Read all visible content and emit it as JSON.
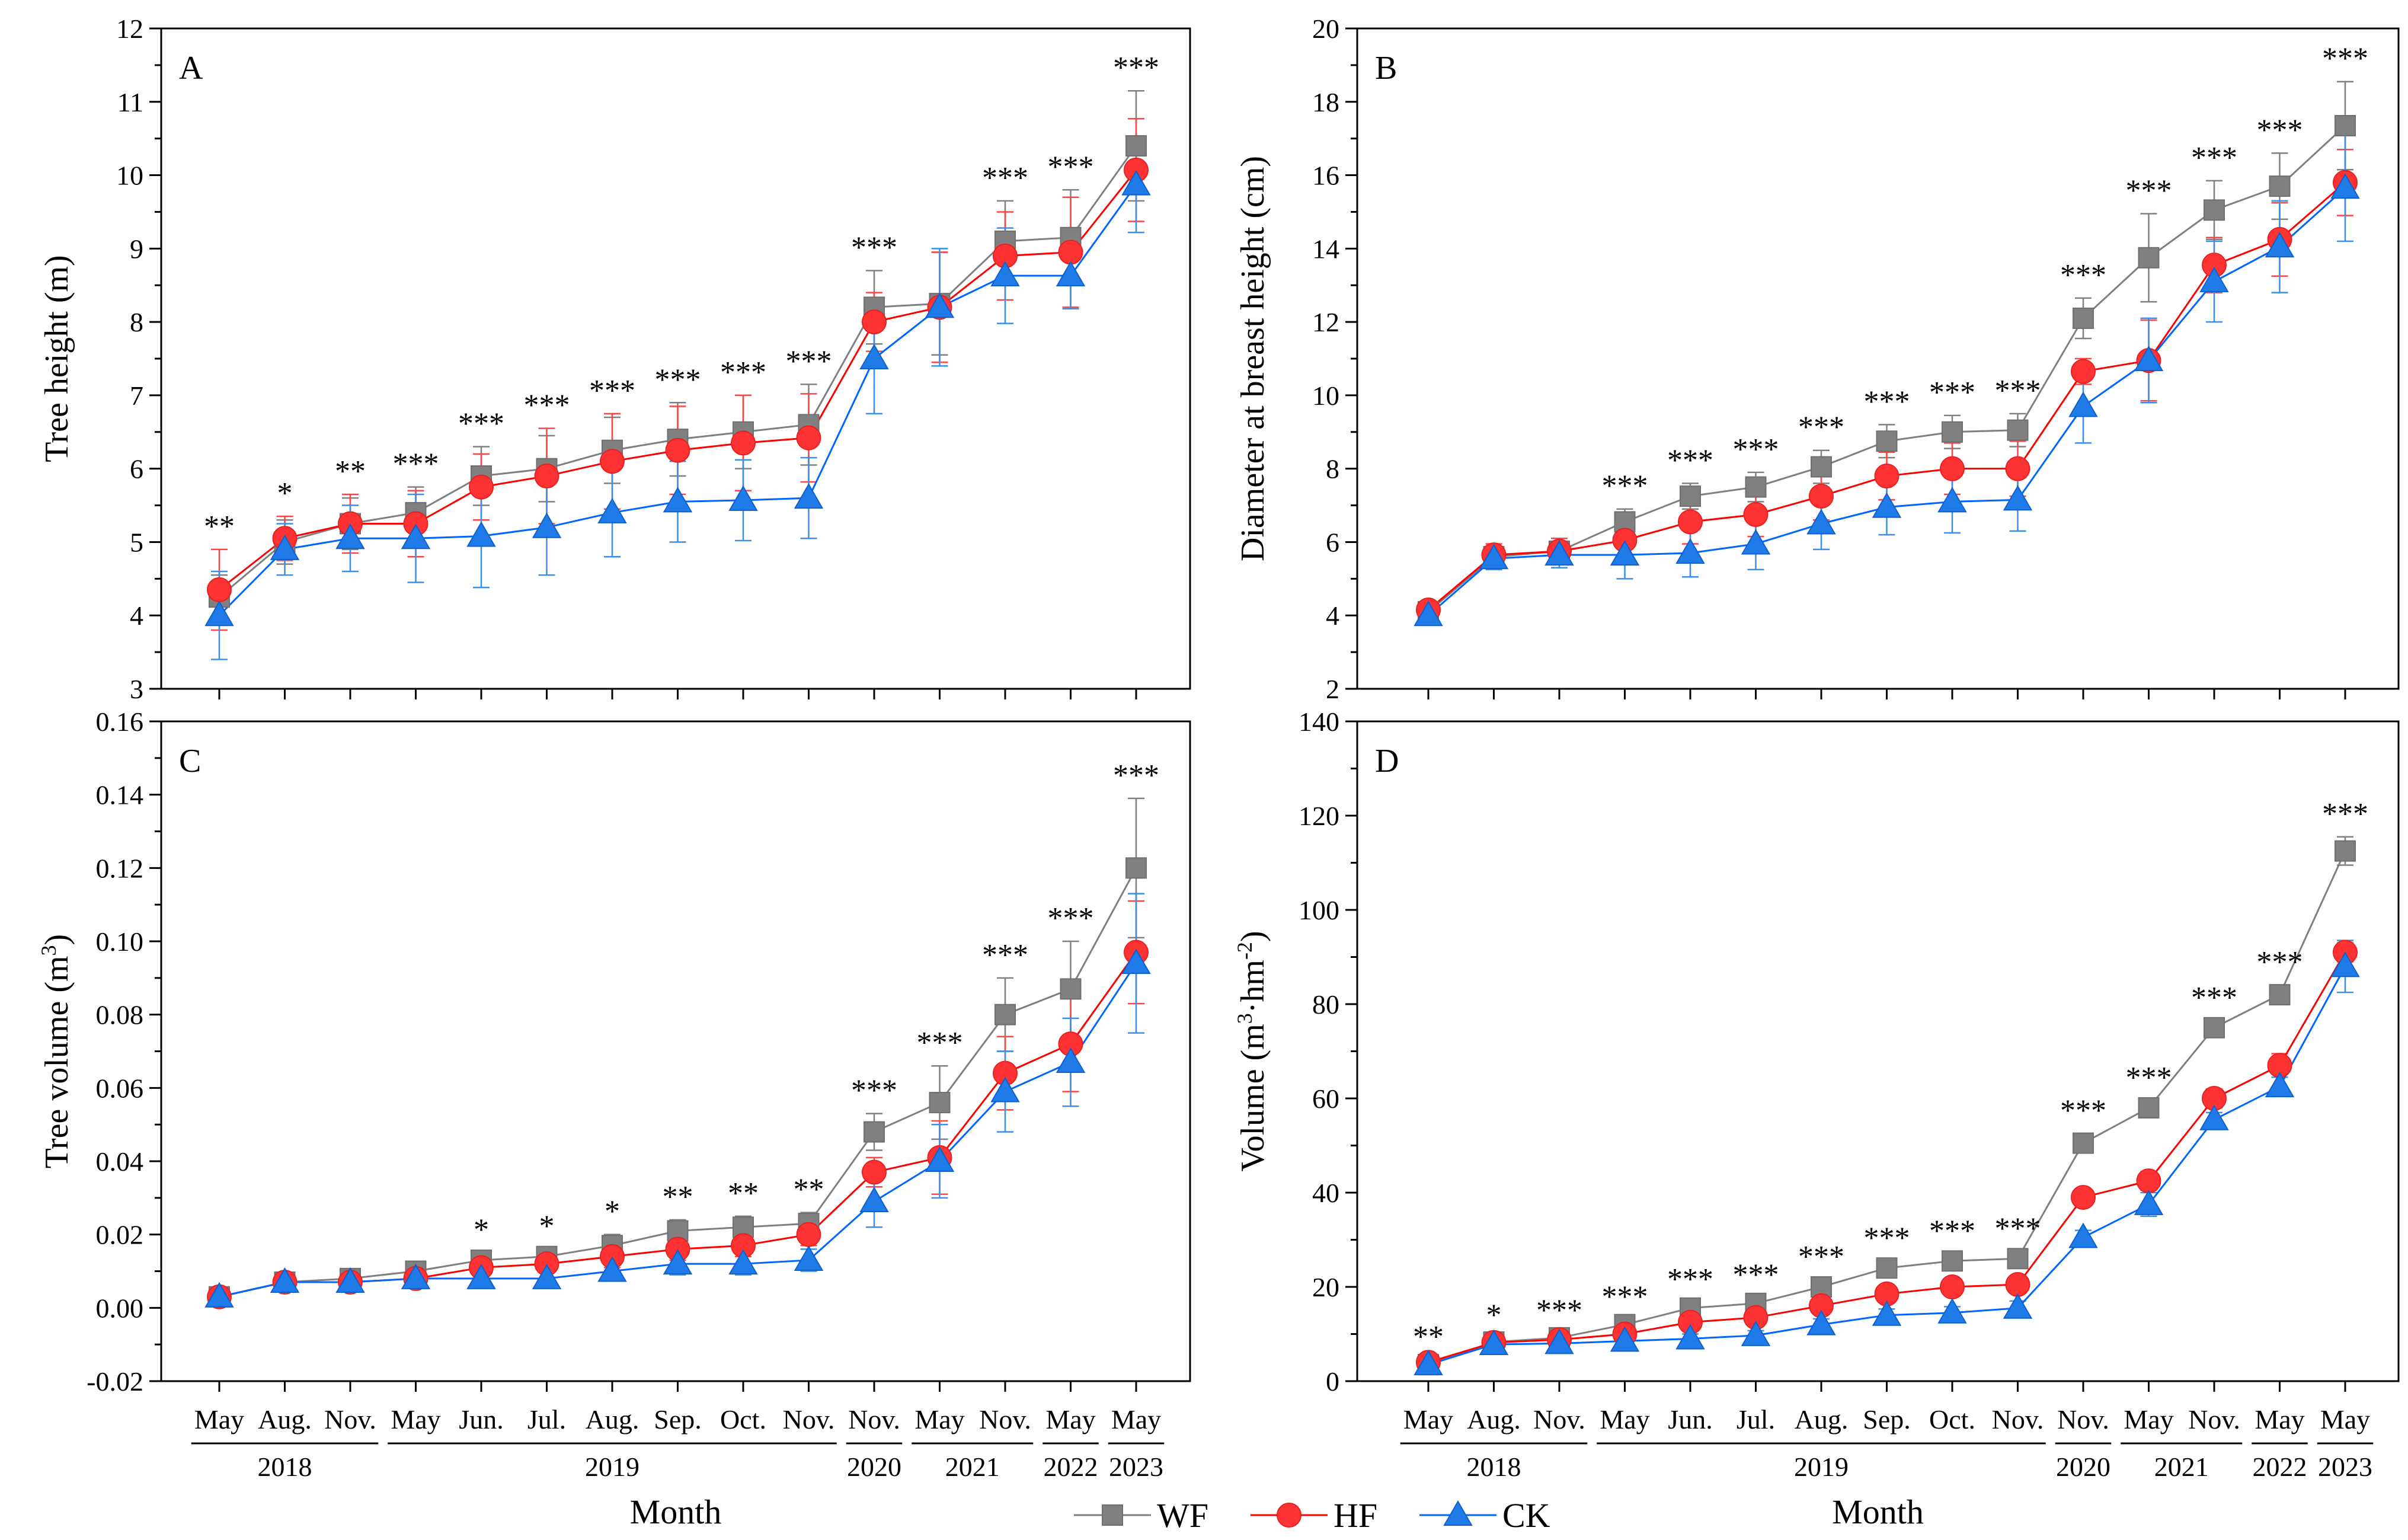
{
  "legend": {
    "entries": [
      {
        "name": "WF",
        "color": "#808080",
        "marker": "square"
      },
      {
        "name": "HF",
        "color": "#ff3333",
        "marker": "circle"
      },
      {
        "name": "CK",
        "color": "#1f7be8",
        "marker": "triangle"
      }
    ]
  },
  "colors": {
    "WF": "#808080",
    "HF": "#ff3333",
    "CK": "#1f7be8",
    "WF_line": "#7f7f7f",
    "HF_line": "#ff0000",
    "CK_line": "#0066ff"
  },
  "chart_data": [
    {
      "type": "line",
      "panel": "A",
      "ylabel": "Tree height (m)",
      "xlabel": "",
      "ylim": [
        3,
        12
      ],
      "yticks": [
        "3",
        "4",
        "5",
        "6",
        "7",
        "8",
        "9",
        "10",
        "11",
        "12"
      ],
      "categories": [
        "May",
        "Aug.",
        "Nov.",
        "May",
        "Jun.",
        "Jul.",
        "Aug.",
        "Sep.",
        "Oct.",
        "Nov.",
        "Nov.",
        "May",
        "Nov.",
        "May",
        "May"
      ],
      "years": [
        {
          "label": "2018",
          "from": 0,
          "to": 2
        },
        {
          "label": "2019",
          "from": 3,
          "to": 9
        },
        {
          "label": "2020",
          "from": 10,
          "to": 10
        },
        {
          "label": "2021",
          "from": 11,
          "to": 12
        },
        {
          "label": "2022",
          "from": 13,
          "to": 13
        },
        {
          "label": "2023",
          "from": 14,
          "to": 14
        }
      ],
      "series": [
        {
          "name": "WF",
          "values": [
            4.25,
            5.0,
            5.25,
            5.4,
            5.9,
            6.0,
            6.25,
            6.4,
            6.5,
            6.6,
            8.2,
            8.25,
            9.1,
            9.15,
            10.4
          ],
          "errors": [
            0.3,
            0.3,
            0.35,
            0.35,
            0.4,
            0.45,
            0.45,
            0.5,
            0.5,
            0.55,
            0.5,
            0.7,
            0.55,
            0.65,
            0.75
          ]
        },
        {
          "name": "HF",
          "values": [
            4.35,
            5.05,
            5.25,
            5.25,
            5.75,
            5.9,
            6.1,
            6.25,
            6.35,
            6.42,
            8.0,
            8.2,
            8.9,
            8.95,
            10.07
          ],
          "errors": [
            0.55,
            0.3,
            0.4,
            0.45,
            0.45,
            0.65,
            0.65,
            0.6,
            0.65,
            0.6,
            0.4,
            0.75,
            0.6,
            0.75,
            0.7
          ]
        },
        {
          "name": "CK",
          "values": [
            4.0,
            4.9,
            5.05,
            5.05,
            5.08,
            5.2,
            5.4,
            5.55,
            5.57,
            5.6,
            7.5,
            8.2,
            8.63,
            8.63,
            9.87
          ],
          "errors": [
            0.6,
            0.35,
            0.45,
            0.6,
            0.7,
            0.65,
            0.6,
            0.55,
            0.55,
            0.55,
            0.75,
            0.8,
            0.65,
            0.45,
            0.65
          ]
        }
      ],
      "significance": [
        "**",
        "*",
        "**",
        "***",
        "***",
        "***",
        "***",
        "***",
        "***",
        "***",
        "***",
        "",
        "***",
        "***",
        "***"
      ],
      "x_title": "",
      "tick_label_rows": false
    },
    {
      "type": "line",
      "panel": "B",
      "ylabel": "Diameter at breast height (cm)",
      "xlabel": "",
      "ylim": [
        2,
        20
      ],
      "yticks": [
        "2",
        "4",
        "6",
        "8",
        "10",
        "12",
        "14",
        "16",
        "18",
        "20"
      ],
      "categories": [
        "May",
        "Aug.",
        "Nov.",
        "May",
        "Jun.",
        "Jul.",
        "Aug.",
        "Sep.",
        "Oct.",
        "Nov.",
        "Nov.",
        "May",
        "Nov.",
        "May",
        "May"
      ],
      "years": [
        {
          "label": "2018",
          "from": 0,
          "to": 2
        },
        {
          "label": "2019",
          "from": 3,
          "to": 9
        },
        {
          "label": "2020",
          "from": 10,
          "to": 10
        },
        {
          "label": "2021",
          "from": 11,
          "to": 12
        },
        {
          "label": "2022",
          "from": 13,
          "to": 13
        },
        {
          "label": "2023",
          "from": 14,
          "to": 14
        }
      ],
      "series": [
        {
          "name": "WF",
          "values": [
            4.1,
            5.6,
            5.75,
            6.55,
            7.25,
            7.5,
            8.05,
            8.75,
            9.0,
            9.05,
            12.1,
            13.75,
            15.05,
            15.7,
            17.35
          ],
          "errors": [
            0.15,
            0.25,
            0.35,
            0.35,
            0.35,
            0.4,
            0.45,
            0.45,
            0.45,
            0.45,
            0.55,
            1.2,
            0.8,
            0.9,
            1.2
          ]
        },
        {
          "name": "HF",
          "values": [
            4.15,
            5.65,
            5.75,
            6.05,
            6.55,
            6.75,
            7.25,
            7.8,
            8.0,
            8.0,
            10.65,
            10.95,
            13.55,
            14.25,
            15.8
          ],
          "errors": [
            0.15,
            0.3,
            0.35,
            0.5,
            0.6,
            0.6,
            0.65,
            0.65,
            0.7,
            0.75,
            0.35,
            1.1,
            0.75,
            1.0,
            0.9
          ]
        },
        {
          "name": "CK",
          "values": [
            4.0,
            5.55,
            5.65,
            5.65,
            5.7,
            5.95,
            6.5,
            6.95,
            7.1,
            7.15,
            9.7,
            10.95,
            13.1,
            14.05,
            15.65
          ],
          "errors": [
            0.2,
            0.3,
            0.35,
            0.65,
            0.65,
            0.7,
            0.7,
            0.75,
            0.85,
            0.85,
            1.0,
            1.15,
            1.1,
            1.25,
            1.45
          ]
        }
      ],
      "significance": [
        "",
        "",
        "",
        "***",
        "***",
        "***",
        "***",
        "***",
        "***",
        "***",
        "***",
        "***",
        "***",
        "***",
        "***"
      ],
      "x_title": "",
      "tick_label_rows": false
    },
    {
      "type": "line",
      "panel": "C",
      "ylabel": "Tree volume (m",
      "ylabel_sup": "3",
      "ylabel_end": ")",
      "xlabel": "Month",
      "ylim": [
        -0.02,
        0.16
      ],
      "yticks": [
        "-0.02",
        "0.00",
        "0.02",
        "0.04",
        "0.06",
        "0.08",
        "0.10",
        "0.12",
        "0.14",
        "0.16"
      ],
      "categories": [
        "May",
        "Aug.",
        "Nov.",
        "May",
        "Jun.",
        "Jul.",
        "Aug.",
        "Sep.",
        "Oct.",
        "Nov.",
        "Nov.",
        "May",
        "Nov.",
        "May",
        "May"
      ],
      "years": [
        {
          "label": "2018",
          "from": 0,
          "to": 2
        },
        {
          "label": "2019",
          "from": 3,
          "to": 9
        },
        {
          "label": "2020",
          "from": 10,
          "to": 10
        },
        {
          "label": "2021",
          "from": 11,
          "to": 12
        },
        {
          "label": "2022",
          "from": 13,
          "to": 13
        },
        {
          "label": "2023",
          "from": 14,
          "to": 14
        }
      ],
      "series": [
        {
          "name": "WF",
          "values": [
            0.003,
            0.007,
            0.008,
            0.01,
            0.013,
            0.014,
            0.017,
            0.021,
            0.022,
            0.023,
            0.048,
            0.056,
            0.08,
            0.087,
            0.12
          ],
          "errors": [
            0.001,
            0.001,
            0.001,
            0.002,
            0.002,
            0.002,
            0.003,
            0.003,
            0.003,
            0.003,
            0.005,
            0.01,
            0.01,
            0.013,
            0.019
          ]
        },
        {
          "name": "HF",
          "values": [
            0.003,
            0.007,
            0.007,
            0.008,
            0.011,
            0.012,
            0.014,
            0.016,
            0.017,
            0.02,
            0.037,
            0.041,
            0.064,
            0.072,
            0.097
          ],
          "errors": [
            0.001,
            0.001,
            0.001,
            0.002,
            0.002,
            0.002,
            0.003,
            0.003,
            0.003,
            0.003,
            0.004,
            0.01,
            0.01,
            0.013,
            0.014
          ]
        },
        {
          "name": "CK",
          "values": [
            0.003,
            0.007,
            0.007,
            0.008,
            0.008,
            0.008,
            0.01,
            0.012,
            0.012,
            0.013,
            0.029,
            0.04,
            0.059,
            0.067,
            0.094
          ],
          "errors": [
            0.001,
            0.001,
            0.001,
            0.002,
            0.002,
            0.002,
            0.002,
            0.003,
            0.003,
            0.003,
            0.007,
            0.01,
            0.011,
            0.012,
            0.019
          ]
        }
      ],
      "significance": [
        "",
        "",
        "",
        "",
        "*",
        "*",
        "*",
        "**",
        "**",
        "**",
        "***",
        "***",
        "***",
        "***",
        "***"
      ],
      "x_title": "Month",
      "tick_label_rows": true
    },
    {
      "type": "line",
      "panel": "D",
      "ylabel": "Volume (m",
      "ylabel_sup": "3",
      "ylabel_mid": "·hm",
      "ylabel_sup2": "-2",
      "ylabel_end": ")",
      "xlabel": "Month",
      "ylim": [
        0,
        140
      ],
      "yticks": [
        "0",
        "20",
        "40",
        "60",
        "80",
        "100",
        "120",
        "140"
      ],
      "categories": [
        "May",
        "Aug.",
        "Nov.",
        "May",
        "Jun.",
        "Jul.",
        "Aug.",
        "Sep.",
        "Oct.",
        "Nov.",
        "Nov.",
        "May",
        "Nov.",
        "May",
        "May"
      ],
      "years": [
        {
          "label": "2018",
          "from": 0,
          "to": 2
        },
        {
          "label": "2019",
          "from": 3,
          "to": 9
        },
        {
          "label": "2020",
          "from": 10,
          "to": 10
        },
        {
          "label": "2021",
          "from": 11,
          "to": 12
        },
        {
          "label": "2022",
          "from": 13,
          "to": 13
        },
        {
          "label": "2023",
          "from": 14,
          "to": 14
        }
      ],
      "series": [
        {
          "name": "WF",
          "values": [
            3.5,
            8.3,
            9.2,
            12.0,
            15.5,
            16.5,
            20.0,
            24.0,
            25.5,
            26.0,
            50.5,
            58.0,
            75.0,
            82.0,
            112.5
          ],
          "errors": [
            0.5,
            0.8,
            0.9,
            1.0,
            1.2,
            1.2,
            1.5,
            1.5,
            1.5,
            1.5,
            2.0,
            1.5,
            1.5,
            2.0,
            3.0
          ]
        },
        {
          "name": "HF",
          "values": [
            4.0,
            8.2,
            8.8,
            10.0,
            12.5,
            13.5,
            16.0,
            18.5,
            20.0,
            20.5,
            39.0,
            42.5,
            60.0,
            67.0,
            91.0
          ],
          "errors": [
            0.5,
            0.8,
            0.9,
            1.0,
            1.0,
            1.2,
            1.3,
            1.5,
            1.5,
            1.5,
            1.5,
            2.0,
            2.0,
            2.5,
            2.0
          ]
        },
        {
          "name": "CK",
          "values": [
            3.5,
            7.8,
            8.0,
            8.5,
            9.0,
            9.7,
            12.0,
            14.0,
            14.5,
            15.5,
            30.5,
            37.5,
            55.5,
            62.5,
            88.0
          ],
          "errors": [
            0.5,
            0.8,
            0.9,
            1.0,
            1.0,
            1.0,
            1.2,
            1.3,
            1.3,
            1.5,
            1.5,
            2.5,
            1.5,
            2.0,
            5.5
          ]
        }
      ],
      "significance": [
        "**",
        "*",
        "***",
        "***",
        "***",
        "***",
        "***",
        "***",
        "***",
        "***",
        "***",
        "***",
        "***",
        "***",
        "***"
      ],
      "x_title": "Month",
      "tick_label_rows": true
    }
  ]
}
